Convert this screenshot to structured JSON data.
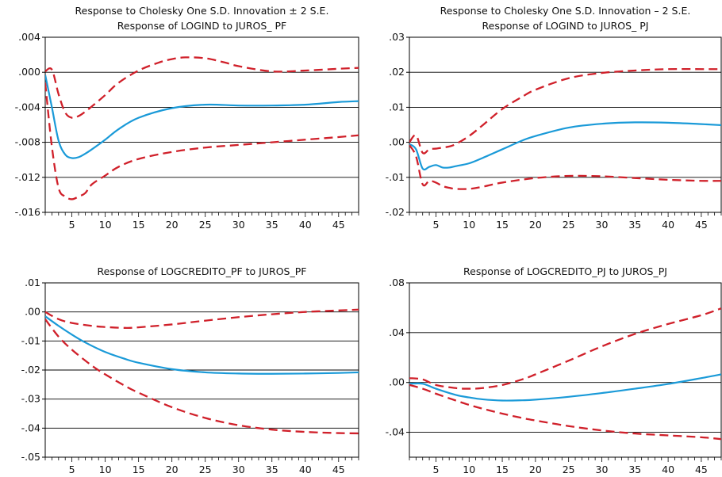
{
  "figure": {
    "panels": [
      {
        "title_lines": [
          "Response to Cholesky One S.D. Innovation ± 2 S.E.",
          "Response of LOGIND to JUROS_ PF"
        ],
        "y_tick_labels": [
          ".004",
          ".000",
          "-.004",
          "-.008",
          "-.012",
          "-.016"
        ],
        "x_tick_labels": [
          "5",
          "10",
          "15",
          "20",
          "25",
          "30",
          "35",
          "40",
          "45"
        ]
      },
      {
        "title_lines": [
          "Response to Cholesky One S.D. Innovation – 2 S.E.",
          "Response of LOGIND to JUROS_ PJ"
        ],
        "y_tick_labels": [
          ".03",
          ".02",
          ".01",
          ".00",
          "-.01",
          "-.02"
        ],
        "x_tick_labels": [
          "5",
          "10",
          "15",
          "20",
          "25",
          "30",
          "35",
          "40",
          "45"
        ]
      },
      {
        "title_lines": [
          "Response of LOGCREDITO_PF to JUROS_PF"
        ],
        "y_tick_labels": [
          ".01",
          ".00",
          "-.01",
          "-.02",
          "-.03",
          "-.04",
          "-.05"
        ],
        "x_tick_labels": [
          "5",
          "10",
          "15",
          "20",
          "25",
          "30",
          "35",
          "40",
          "45"
        ]
      },
      {
        "title_lines": [
          "Response of LOGCREDITO_PJ to JUROS_PJ"
        ],
        "y_tick_labels": [
          ".08",
          ".04",
          ".00",
          "-.04"
        ],
        "x_tick_labels": [
          "5",
          "10",
          "15",
          "20",
          "25",
          "30",
          "35",
          "40",
          "45"
        ]
      }
    ]
  },
  "colors": {
    "response": "#1a9ad8",
    "bands": "#d0202a",
    "axis": "#000000"
  },
  "chart_data": [
    {
      "type": "line",
      "title": "Response to Cholesky One S.D. Innovation ± 2 S.E. / Response of LOGIND to JUROS_ PF",
      "xlim": [
        1,
        48
      ],
      "ylim": [
        -0.016,
        0.004
      ],
      "y_ticks": [
        0.004,
        0.0,
        -0.004,
        -0.008,
        -0.012,
        -0.016
      ],
      "x_ticks": [
        5,
        10,
        15,
        20,
        25,
        30,
        35,
        40,
        45
      ],
      "grid": "horizontal",
      "legend": "none",
      "series": [
        {
          "role": "response",
          "style": "solid",
          "x": [
            1,
            2,
            3,
            4,
            5,
            6,
            7,
            8,
            10,
            12,
            15,
            20,
            25,
            30,
            35,
            40,
            45,
            48
          ],
          "values": [
            -0.0003,
            -0.004,
            -0.0078,
            -0.0094,
            -0.0098,
            -0.0097,
            -0.0093,
            -0.0088,
            -0.0077,
            -0.0065,
            -0.0052,
            -0.0041,
            -0.0037,
            -0.0038,
            -0.0038,
            -0.0037,
            -0.0034,
            -0.0033
          ]
        },
        {
          "role": "upper band",
          "style": "dashed",
          "x": [
            1,
            2,
            3,
            4,
            5,
            6,
            7,
            8,
            10,
            12,
            15,
            18,
            20,
            22,
            25,
            28,
            30,
            35,
            40,
            45,
            48
          ],
          "values": [
            0.0001,
            0.0003,
            -0.0025,
            -0.0046,
            -0.0052,
            -0.005,
            -0.0045,
            -0.0039,
            -0.0026,
            -0.0012,
            0.0002,
            0.0011,
            0.0015,
            0.0017,
            0.0016,
            0.0011,
            0.0007,
            0.0001,
            0.0002,
            0.0004,
            0.0005
          ]
        },
        {
          "role": "lower band",
          "style": "dashed",
          "x": [
            1,
            2,
            3,
            4,
            5,
            6,
            7,
            8,
            10,
            12,
            15,
            20,
            25,
            30,
            35,
            40,
            45,
            48
          ],
          "values": [
            -0.0012,
            -0.0085,
            -0.0132,
            -0.0142,
            -0.0145,
            -0.0142,
            -0.0138,
            -0.0128,
            -0.0118,
            -0.0108,
            -0.0099,
            -0.0091,
            -0.0086,
            -0.0083,
            -0.008,
            -0.0077,
            -0.0074,
            -0.0072
          ]
        }
      ]
    },
    {
      "type": "line",
      "title": "Response to Cholesky One S.D. Innovation – 2 S.E. / Response of LOGIND to JUROS_ PJ",
      "xlim": [
        1,
        48
      ],
      "ylim": [
        -0.02,
        0.03
      ],
      "y_ticks": [
        0.03,
        0.02,
        0.01,
        0.0,
        -0.01,
        -0.02
      ],
      "x_ticks": [
        5,
        10,
        15,
        20,
        25,
        30,
        35,
        40,
        45
      ],
      "grid": "horizontal",
      "legend": "none",
      "series": [
        {
          "role": "response",
          "style": "solid",
          "x": [
            1,
            2,
            3,
            4,
            5,
            6,
            7,
            8,
            10,
            12,
            15,
            18,
            20,
            25,
            30,
            35,
            40,
            45,
            48
          ],
          "values": [
            -0.0005,
            -0.002,
            -0.0075,
            -0.007,
            -0.0065,
            -0.0072,
            -0.0072,
            -0.0068,
            -0.006,
            -0.0045,
            -0.002,
            0.0005,
            0.0018,
            0.0042,
            0.0053,
            0.0057,
            0.0056,
            0.0052,
            0.0049
          ]
        },
        {
          "role": "upper band",
          "style": "dashed",
          "x": [
            1,
            2,
            3,
            4,
            5,
            6,
            7,
            8,
            10,
            12,
            15,
            18,
            20,
            25,
            30,
            35,
            40,
            45,
            48
          ],
          "values": [
            0.0,
            0.002,
            -0.003,
            -0.002,
            -0.0018,
            -0.0015,
            -0.0012,
            -0.0005,
            0.0018,
            0.0048,
            0.0095,
            0.013,
            0.015,
            0.0183,
            0.0198,
            0.0205,
            0.0209,
            0.0209,
            0.0209
          ]
        },
        {
          "role": "lower band",
          "style": "dashed",
          "x": [
            1,
            2,
            3,
            4,
            5,
            6,
            7,
            8,
            10,
            12,
            15,
            20,
            25,
            30,
            35,
            40,
            45,
            48
          ],
          "values": [
            -0.0008,
            -0.004,
            -0.012,
            -0.011,
            -0.0115,
            -0.0125,
            -0.013,
            -0.0133,
            -0.0133,
            -0.0127,
            -0.0115,
            -0.0102,
            -0.0096,
            -0.0097,
            -0.0102,
            -0.0107,
            -0.011,
            -0.011
          ]
        }
      ]
    },
    {
      "type": "line",
      "title": "Response of LOGCREDITO_PF to JUROS_PF",
      "xlim": [
        1,
        48
      ],
      "ylim": [
        -0.05,
        0.01
      ],
      "y_ticks": [
        0.01,
        0.0,
        -0.01,
        -0.02,
        -0.03,
        -0.04,
        -0.05
      ],
      "x_ticks": [
        5,
        10,
        15,
        20,
        25,
        30,
        35,
        40,
        45
      ],
      "grid": "horizontal",
      "legend": "none",
      "series": [
        {
          "role": "response",
          "style": "solid",
          "x": [
            1,
            3,
            5,
            7,
            10,
            13,
            15,
            20,
            25,
            30,
            35,
            40,
            45,
            48
          ],
          "values": [
            -0.0015,
            -0.0048,
            -0.0078,
            -0.0105,
            -0.0138,
            -0.0162,
            -0.0175,
            -0.0197,
            -0.0208,
            -0.0212,
            -0.0213,
            -0.0212,
            -0.021,
            -0.0208
          ]
        },
        {
          "role": "upper band",
          "style": "dashed",
          "x": [
            1,
            3,
            5,
            8,
            10,
            13,
            15,
            20,
            25,
            30,
            35,
            40,
            45,
            48
          ],
          "values": [
            0.0,
            -0.0025,
            -0.0038,
            -0.0048,
            -0.0052,
            -0.0055,
            -0.0053,
            -0.0043,
            -0.003,
            -0.0018,
            -0.0008,
            0.0,
            0.0005,
            0.0008
          ]
        },
        {
          "role": "lower band",
          "style": "dashed",
          "x": [
            1,
            3,
            5,
            8,
            10,
            13,
            15,
            20,
            25,
            30,
            35,
            40,
            45,
            48
          ],
          "values": [
            -0.0025,
            -0.0085,
            -0.013,
            -0.0185,
            -0.0215,
            -0.0255,
            -0.0278,
            -0.0328,
            -0.0365,
            -0.039,
            -0.0405,
            -0.0413,
            -0.0417,
            -0.0418
          ]
        }
      ]
    },
    {
      "type": "line",
      "title": "Response of LOGCREDITO_PJ to JUROS_PJ",
      "xlim": [
        1,
        48
      ],
      "ylim": [
        -0.06,
        0.08
      ],
      "y_ticks": [
        0.08,
        0.04,
        0.0,
        -0.04
      ],
      "x_ticks": [
        5,
        10,
        15,
        20,
        25,
        30,
        35,
        40,
        45
      ],
      "grid": "horizontal",
      "legend": "none",
      "series": [
        {
          "role": "response",
          "style": "solid",
          "x": [
            1,
            3,
            5,
            8,
            10,
            12,
            15,
            18,
            20,
            25,
            30,
            35,
            40,
            45,
            48
          ],
          "values": [
            -0.001,
            -0.001,
            -0.005,
            -0.01,
            -0.012,
            -0.0135,
            -0.0145,
            -0.0143,
            -0.0138,
            -0.0115,
            -0.0085,
            -0.005,
            -0.0012,
            0.0035,
            0.0065
          ]
        },
        {
          "role": "upper band",
          "style": "dashed",
          "x": [
            1,
            3,
            5,
            8,
            10,
            12,
            15,
            18,
            20,
            25,
            30,
            35,
            40,
            45,
            48
          ],
          "values": [
            0.0035,
            0.0025,
            -0.002,
            -0.0045,
            -0.005,
            -0.0045,
            -0.002,
            0.0025,
            0.0065,
            0.0175,
            0.029,
            0.039,
            0.047,
            0.054,
            0.0595
          ]
        },
        {
          "role": "lower band",
          "style": "dashed",
          "x": [
            1,
            3,
            5,
            8,
            10,
            12,
            15,
            18,
            20,
            25,
            30,
            35,
            40,
            45,
            48
          ],
          "values": [
            -0.002,
            -0.005,
            -0.009,
            -0.0145,
            -0.018,
            -0.021,
            -0.025,
            -0.0285,
            -0.0305,
            -0.035,
            -0.0385,
            -0.041,
            -0.0425,
            -0.044,
            -0.0455
          ]
        }
      ]
    }
  ]
}
